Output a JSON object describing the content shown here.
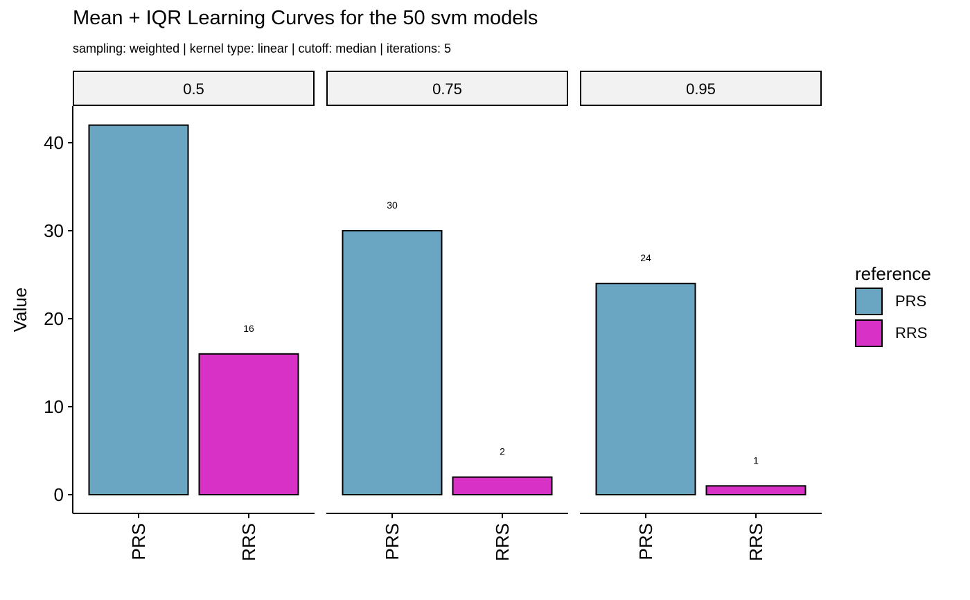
{
  "chart_data": {
    "type": "bar",
    "title": "Mean + IQR Learning Curves for the 50 svm models",
    "subtitle": "sampling: weighted | kernel type: linear | cutoff: median | iterations: 5",
    "ylabel": "Value",
    "xlabel": "",
    "ylim": [
      0,
      42
    ],
    "yticks": [
      0,
      10,
      20,
      30,
      40
    ],
    "categories": [
      "PRS",
      "RRS"
    ],
    "facets": [
      {
        "label": "0.5",
        "values": [
          42,
          16
        ],
        "data_labels": [
          "",
          "16"
        ]
      },
      {
        "label": "0.75",
        "values": [
          30,
          2
        ],
        "data_labels": [
          "30",
          "2"
        ]
      },
      {
        "label": "0.95",
        "values": [
          24,
          1
        ],
        "data_labels": [
          "24",
          "1"
        ]
      }
    ],
    "legend": {
      "title": "reference",
      "position": "right",
      "entries": [
        {
          "label": "PRS",
          "color": "#6aa6c2"
        },
        {
          "label": "RRS",
          "color": "#d831c6"
        }
      ]
    },
    "grid": false
  }
}
